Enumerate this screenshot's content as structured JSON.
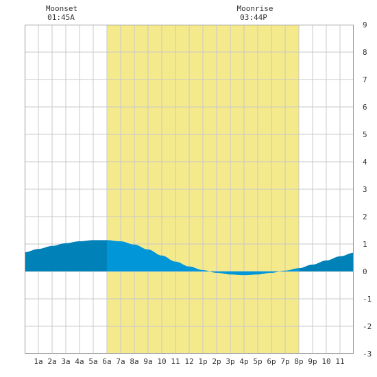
{
  "annotations": {
    "moonset": {
      "label": "Moonset",
      "time": "01:45A"
    },
    "moonrise": {
      "label": "Moonrise",
      "time": "03:44P"
    }
  },
  "chart_data": {
    "type": "area",
    "title": "",
    "xlabel": "",
    "ylabel": "",
    "xlim": [
      0,
      24
    ],
    "ylim": [
      -3,
      9
    ],
    "grid": true,
    "daylight": {
      "start_hour": 6,
      "end_hour": 20
    },
    "x_ticks": [
      {
        "hour": 1,
        "label": "1a"
      },
      {
        "hour": 2,
        "label": "2a"
      },
      {
        "hour": 3,
        "label": "3a"
      },
      {
        "hour": 4,
        "label": "4a"
      },
      {
        "hour": 5,
        "label": "5a"
      },
      {
        "hour": 6,
        "label": "6a"
      },
      {
        "hour": 7,
        "label": "7a"
      },
      {
        "hour": 8,
        "label": "8a"
      },
      {
        "hour": 9,
        "label": "9a"
      },
      {
        "hour": 10,
        "label": "10"
      },
      {
        "hour": 11,
        "label": "11"
      },
      {
        "hour": 12,
        "label": "12"
      },
      {
        "hour": 13,
        "label": "1p"
      },
      {
        "hour": 14,
        "label": "2p"
      },
      {
        "hour": 15,
        "label": "3p"
      },
      {
        "hour": 16,
        "label": "4p"
      },
      {
        "hour": 17,
        "label": "5p"
      },
      {
        "hour": 18,
        "label": "6p"
      },
      {
        "hour": 19,
        "label": "7p"
      },
      {
        "hour": 20,
        "label": "8p"
      },
      {
        "hour": 21,
        "label": "9p"
      },
      {
        "hour": 22,
        "label": "10"
      },
      {
        "hour": 23,
        "label": "11"
      }
    ],
    "y_ticks": [
      {
        "value": 9,
        "label": "9"
      },
      {
        "value": 8,
        "label": "8"
      },
      {
        "value": 7,
        "label": "7"
      },
      {
        "value": 6,
        "label": "6"
      },
      {
        "value": 5,
        "label": "5"
      },
      {
        "value": 4,
        "label": "4"
      },
      {
        "value": 3,
        "label": "3"
      },
      {
        "value": 2,
        "label": "2"
      },
      {
        "value": 1,
        "label": "1"
      },
      {
        "value": 0,
        "label": "0"
      },
      {
        "value": -1,
        "label": "-1"
      },
      {
        "value": -2,
        "label": "-2"
      },
      {
        "value": -3,
        "label": "-3"
      }
    ],
    "series": [
      {
        "x": [
          0,
          1,
          2,
          3,
          4,
          5,
          6,
          7,
          8,
          9,
          10,
          11,
          12,
          13,
          14,
          15,
          16,
          17,
          18,
          19,
          20,
          21,
          22,
          23,
          24
        ],
        "values": [
          0.7,
          0.82,
          0.93,
          1.03,
          1.1,
          1.14,
          1.14,
          1.1,
          0.98,
          0.8,
          0.58,
          0.36,
          0.18,
          0.05,
          -0.05,
          -0.11,
          -0.13,
          -0.11,
          -0.05,
          0.03,
          0.12,
          0.25,
          0.4,
          0.55,
          0.68
        ]
      }
    ],
    "colors": {
      "background": "#ffffff",
      "daylight": "#f5ea8b",
      "grid": "#c8c8c8",
      "night_fill": "#0081b8",
      "day_fill": "#0096d8",
      "axis": "#333333"
    }
  }
}
